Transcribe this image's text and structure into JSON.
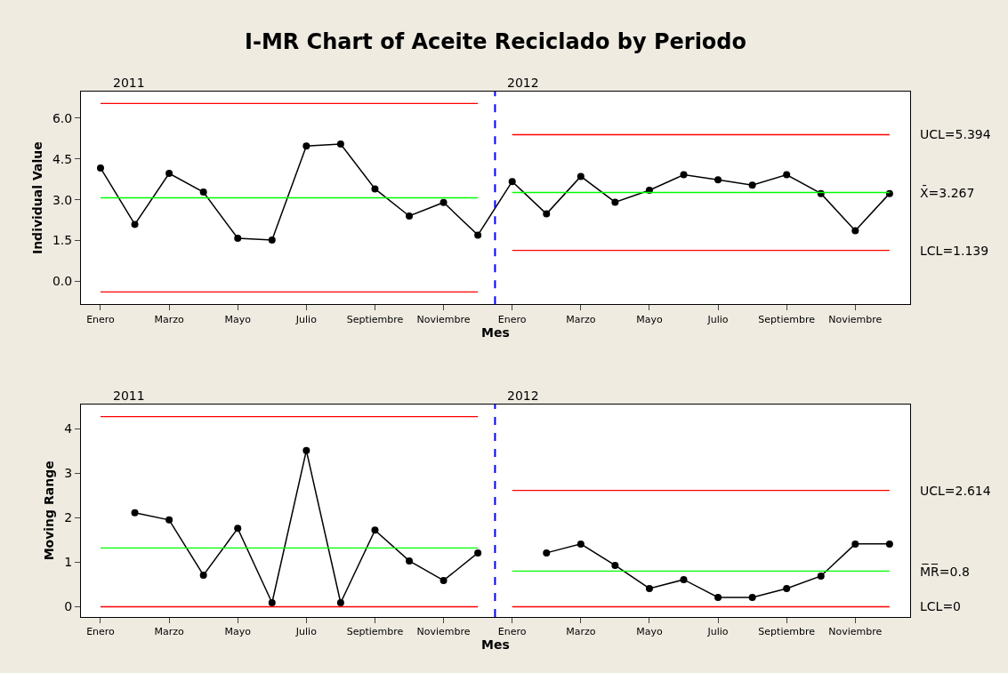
{
  "chart_data": [
    {
      "type": "line",
      "title": "I-MR Chart of Aceite Reciclado by Periodo",
      "xlabel": "Mes",
      "ylabel": "Individual Value",
      "categories": [
        "Enero",
        null,
        "Marzo",
        null,
        "Mayo",
        null,
        "Julio",
        null,
        "Septiembre",
        null,
        "Noviembre",
        null,
        "Enero",
        null,
        "Marzo",
        null,
        "Mayo",
        null,
        "Julio",
        null,
        "Septiembre",
        null,
        "Noviembre",
        null
      ],
      "series": [
        {
          "color": "#000000",
          "values": [
            4.17,
            2.09,
            3.97,
            3.28,
            1.58,
            1.52,
            4.98,
            5.05,
            3.4,
            2.4,
            2.9,
            1.7,
            3.67,
            2.48,
            3.86,
            2.91,
            3.35,
            3.92,
            3.73,
            3.54,
            3.92,
            3.23,
            1.86,
            3.23
          ]
        },
        {
          "color": "#ff0000",
          "marker": "none",
          "values": [
            6.54,
            6.54,
            6.54,
            6.54,
            6.54,
            6.54,
            6.54,
            6.54,
            6.54,
            6.54,
            6.54,
            6.54,
            null,
            null,
            null,
            null,
            null,
            null,
            null,
            null,
            null,
            null,
            null,
            null
          ]
        },
        {
          "color": "#00ff00",
          "marker": "none",
          "values": [
            3.07,
            3.07,
            3.07,
            3.07,
            3.07,
            3.07,
            3.07,
            3.07,
            3.07,
            3.07,
            3.07,
            3.07,
            null,
            null,
            null,
            null,
            null,
            null,
            null,
            null,
            null,
            null,
            null,
            null
          ]
        },
        {
          "color": "#ff0000",
          "marker": "none",
          "values": [
            -0.39,
            -0.39,
            -0.39,
            -0.39,
            -0.39,
            -0.39,
            -0.39,
            -0.39,
            -0.39,
            -0.39,
            -0.39,
            -0.39,
            null,
            null,
            null,
            null,
            null,
            null,
            null,
            null,
            null,
            null,
            null,
            null
          ]
        },
        {
          "color": "#ff0000",
          "marker": "none",
          "values": [
            null,
            null,
            null,
            null,
            null,
            null,
            null,
            null,
            null,
            null,
            null,
            null,
            5.394,
            5.394,
            5.394,
            5.394,
            5.394,
            5.394,
            5.394,
            5.394,
            5.394,
            5.394,
            5.394,
            5.394
          ]
        },
        {
          "color": "#00ff00",
          "marker": "none",
          "values": [
            null,
            null,
            null,
            null,
            null,
            null,
            null,
            null,
            null,
            null,
            null,
            null,
            3.267,
            3.267,
            3.267,
            3.267,
            3.267,
            3.267,
            3.267,
            3.267,
            3.267,
            3.267,
            3.267,
            3.267
          ]
        },
        {
          "color": "#ff0000",
          "marker": "none",
          "values": [
            null,
            null,
            null,
            null,
            null,
            null,
            null,
            null,
            null,
            null,
            null,
            null,
            1.139,
            1.139,
            1.139,
            1.139,
            1.139,
            1.139,
            1.139,
            1.139,
            1.139,
            1.139,
            1.139,
            1.139
          ]
        }
      ],
      "ylim": [
        -0.85,
        6.98
      ],
      "yticks": [
        {
          "value": 0,
          "label": "0.0"
        },
        {
          "value": 1.5,
          "label": "1.5"
        },
        {
          "value": 3,
          "label": "3.0"
        },
        {
          "value": 4.5,
          "label": "4.5"
        },
        {
          "value": 6,
          "label": "6.0"
        }
      ],
      "annotations": [
        "2011",
        "2012",
        "UCL=5.394",
        "X̄=3.267",
        "LCL=1.139"
      ],
      "marker": "circle",
      "line_style": "solid",
      "legend": false
    },
    {
      "type": "line",
      "xlabel": "Mes",
      "ylabel": "Moving Range",
      "categories": [
        "Enero",
        null,
        "Marzo",
        null,
        "Mayo",
        null,
        "Julio",
        null,
        "Septiembre",
        null,
        "Noviembre",
        null,
        "Enero",
        null,
        "Marzo",
        null,
        "Mayo",
        null,
        "Julio",
        null,
        "Septiembre",
        null,
        "Noviembre",
        null
      ],
      "series": [
        {
          "color": "#000000",
          "values": [
            null,
            2.11,
            1.95,
            0.71,
            1.76,
            0.09,
            3.51,
            0.09,
            1.72,
            1.03,
            0.59,
            1.21,
            null,
            1.21,
            1.41,
            0.93,
            0.41,
            0.61,
            0.21,
            0.21,
            0.41,
            0.69,
            1.41,
            1.41
          ]
        },
        {
          "color": "#ff0000",
          "marker": "none",
          "values": [
            4.27,
            4.27,
            4.27,
            4.27,
            4.27,
            4.27,
            4.27,
            4.27,
            4.27,
            4.27,
            4.27,
            4.27,
            null,
            null,
            null,
            null,
            null,
            null,
            null,
            null,
            null,
            null,
            null,
            null
          ]
        },
        {
          "color": "#00ff00",
          "marker": "none",
          "values": [
            1.32,
            1.32,
            1.32,
            1.32,
            1.32,
            1.32,
            1.32,
            1.32,
            1.32,
            1.32,
            1.32,
            1.32,
            null,
            null,
            null,
            null,
            null,
            null,
            null,
            null,
            null,
            null,
            null,
            null
          ]
        },
        {
          "color": "#ff0000",
          "marker": "none",
          "values": [
            0,
            0,
            0,
            0,
            0,
            0,
            0,
            0,
            0,
            0,
            0,
            0,
            null,
            null,
            null,
            null,
            null,
            null,
            null,
            null,
            null,
            null,
            null,
            null
          ]
        },
        {
          "color": "#ff0000",
          "marker": "none",
          "values": [
            null,
            null,
            null,
            null,
            null,
            null,
            null,
            null,
            null,
            null,
            null,
            null,
            2.614,
            2.614,
            2.614,
            2.614,
            2.614,
            2.614,
            2.614,
            2.614,
            2.614,
            2.614,
            2.614,
            2.614
          ]
        },
        {
          "color": "#00ff00",
          "marker": "none",
          "values": [
            null,
            null,
            null,
            null,
            null,
            null,
            null,
            null,
            null,
            null,
            null,
            null,
            0.8,
            0.8,
            0.8,
            0.8,
            0.8,
            0.8,
            0.8,
            0.8,
            0.8,
            0.8,
            0.8,
            0.8
          ]
        },
        {
          "color": "#ff0000",
          "marker": "none",
          "values": [
            null,
            null,
            null,
            null,
            null,
            null,
            null,
            null,
            null,
            null,
            null,
            null,
            0,
            0,
            0,
            0,
            0,
            0,
            0,
            0,
            0,
            0,
            0,
            0
          ]
        }
      ],
      "ylim": [
        -0.23,
        4.55
      ],
      "yticks": [
        0,
        1,
        2,
        3,
        4
      ],
      "annotations": [
        "2011",
        "2012",
        "UCL=2.614",
        "M̅R̅=0.8",
        "LCL=0"
      ],
      "marker": "circle",
      "line_style": "solid",
      "legend": false
    }
  ]
}
